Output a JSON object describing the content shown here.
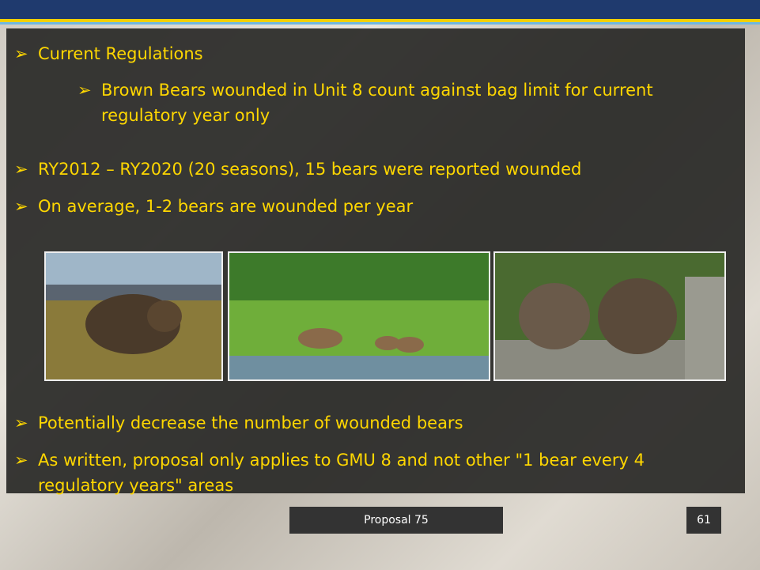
{
  "bullets": [
    {
      "level": 0,
      "text": "Current Regulations"
    },
    {
      "level": 1,
      "text": "Brown Bears wounded in Unit 8 count against bag limit for current regulatory year only"
    },
    {
      "level": 0,
      "text": "RY2012 – RY2020 (20 seasons), 15 bears were reported wounded"
    },
    {
      "level": 0,
      "text": "On average, 1-2 bears are wounded per year"
    },
    {
      "level": 0,
      "text": "Potentially decrease the number of wounded bears"
    },
    {
      "level": 0,
      "text": "As written, proposal only applies to GMU 8 and not other \"1 bear every 4 regulatory years\" areas"
    }
  ],
  "footer": "Proposal 75",
  "page_number": "61"
}
